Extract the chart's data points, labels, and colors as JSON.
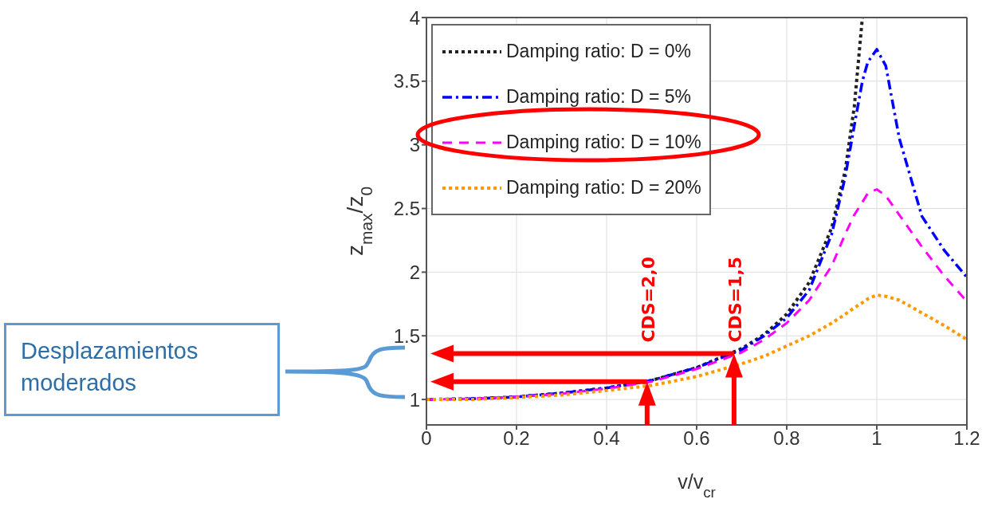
{
  "chart_data": {
    "type": "line",
    "xlabel": "v/v$_{cr}$",
    "ylabel": "z$_{max}$/z$_{0}$",
    "x": [
      0,
      0.1,
      0.2,
      0.3,
      0.4,
      0.5,
      0.6,
      0.7,
      0.75,
      0.8,
      0.85,
      0.9,
      0.93,
      0.95,
      0.968,
      0.98,
      1.0,
      1.02,
      1.05,
      1.1,
      1.15,
      1.2
    ],
    "series": [
      {
        "name": "Damping ratio: D = 0%",
        "color": "#222222",
        "line_style": "dotted",
        "values": [
          1,
          1.005,
          1.02,
          1.05,
          1.09,
          1.15,
          1.25,
          1.4,
          1.51,
          1.67,
          1.92,
          2.35,
          2.8,
          3.3,
          4.0,
          null,
          null,
          null,
          null,
          null,
          null,
          null
        ]
      },
      {
        "name": "Damping ratio: D = 5%",
        "color": "#0000ff",
        "line_style": "dashdot",
        "values": [
          1,
          1.005,
          1.02,
          1.05,
          1.09,
          1.15,
          1.25,
          1.39,
          1.5,
          1.64,
          1.86,
          2.3,
          2.75,
          3.15,
          3.5,
          3.65,
          3.75,
          3.62,
          3.05,
          2.44,
          2.17,
          1.96
        ]
      },
      {
        "name": "Damping ratio: D = 10%",
        "color": "#ff00ff",
        "line_style": "dashed",
        "values": [
          1,
          1.005,
          1.02,
          1.045,
          1.085,
          1.14,
          1.24,
          1.37,
          1.47,
          1.6,
          1.78,
          2.05,
          2.3,
          2.45,
          2.55,
          2.62,
          2.65,
          2.6,
          2.45,
          2.2,
          1.97,
          1.77
        ]
      },
      {
        "name": "Damping ratio: D = 20%",
        "color": "#ff9900",
        "line_style": "dotted",
        "values": [
          1,
          1.0,
          1.015,
          1.035,
          1.07,
          1.11,
          1.18,
          1.28,
          1.34,
          1.42,
          1.5,
          1.6,
          1.67,
          1.72,
          1.76,
          1.79,
          1.82,
          1.81,
          1.78,
          1.68,
          1.58,
          1.47
        ]
      }
    ],
    "xlim": [
      0,
      1.2
    ],
    "xticks": [
      0,
      0.2,
      0.4,
      0.6,
      0.8,
      1,
      1.2
    ],
    "ylim": [
      0.8,
      4
    ],
    "yticks": [
      1,
      1.5,
      2,
      2.5,
      3,
      3.5,
      4
    ],
    "grid": true,
    "legend": "top left",
    "marker": "none",
    "annotations": [
      {
        "text": "CDS=2,0",
        "x": 0.49,
        "y": 1.14
      },
      {
        "text": "CDS=1,5",
        "x": 0.683,
        "y": 1.36
      },
      "Desplazamientos moderados"
    ]
  }
}
